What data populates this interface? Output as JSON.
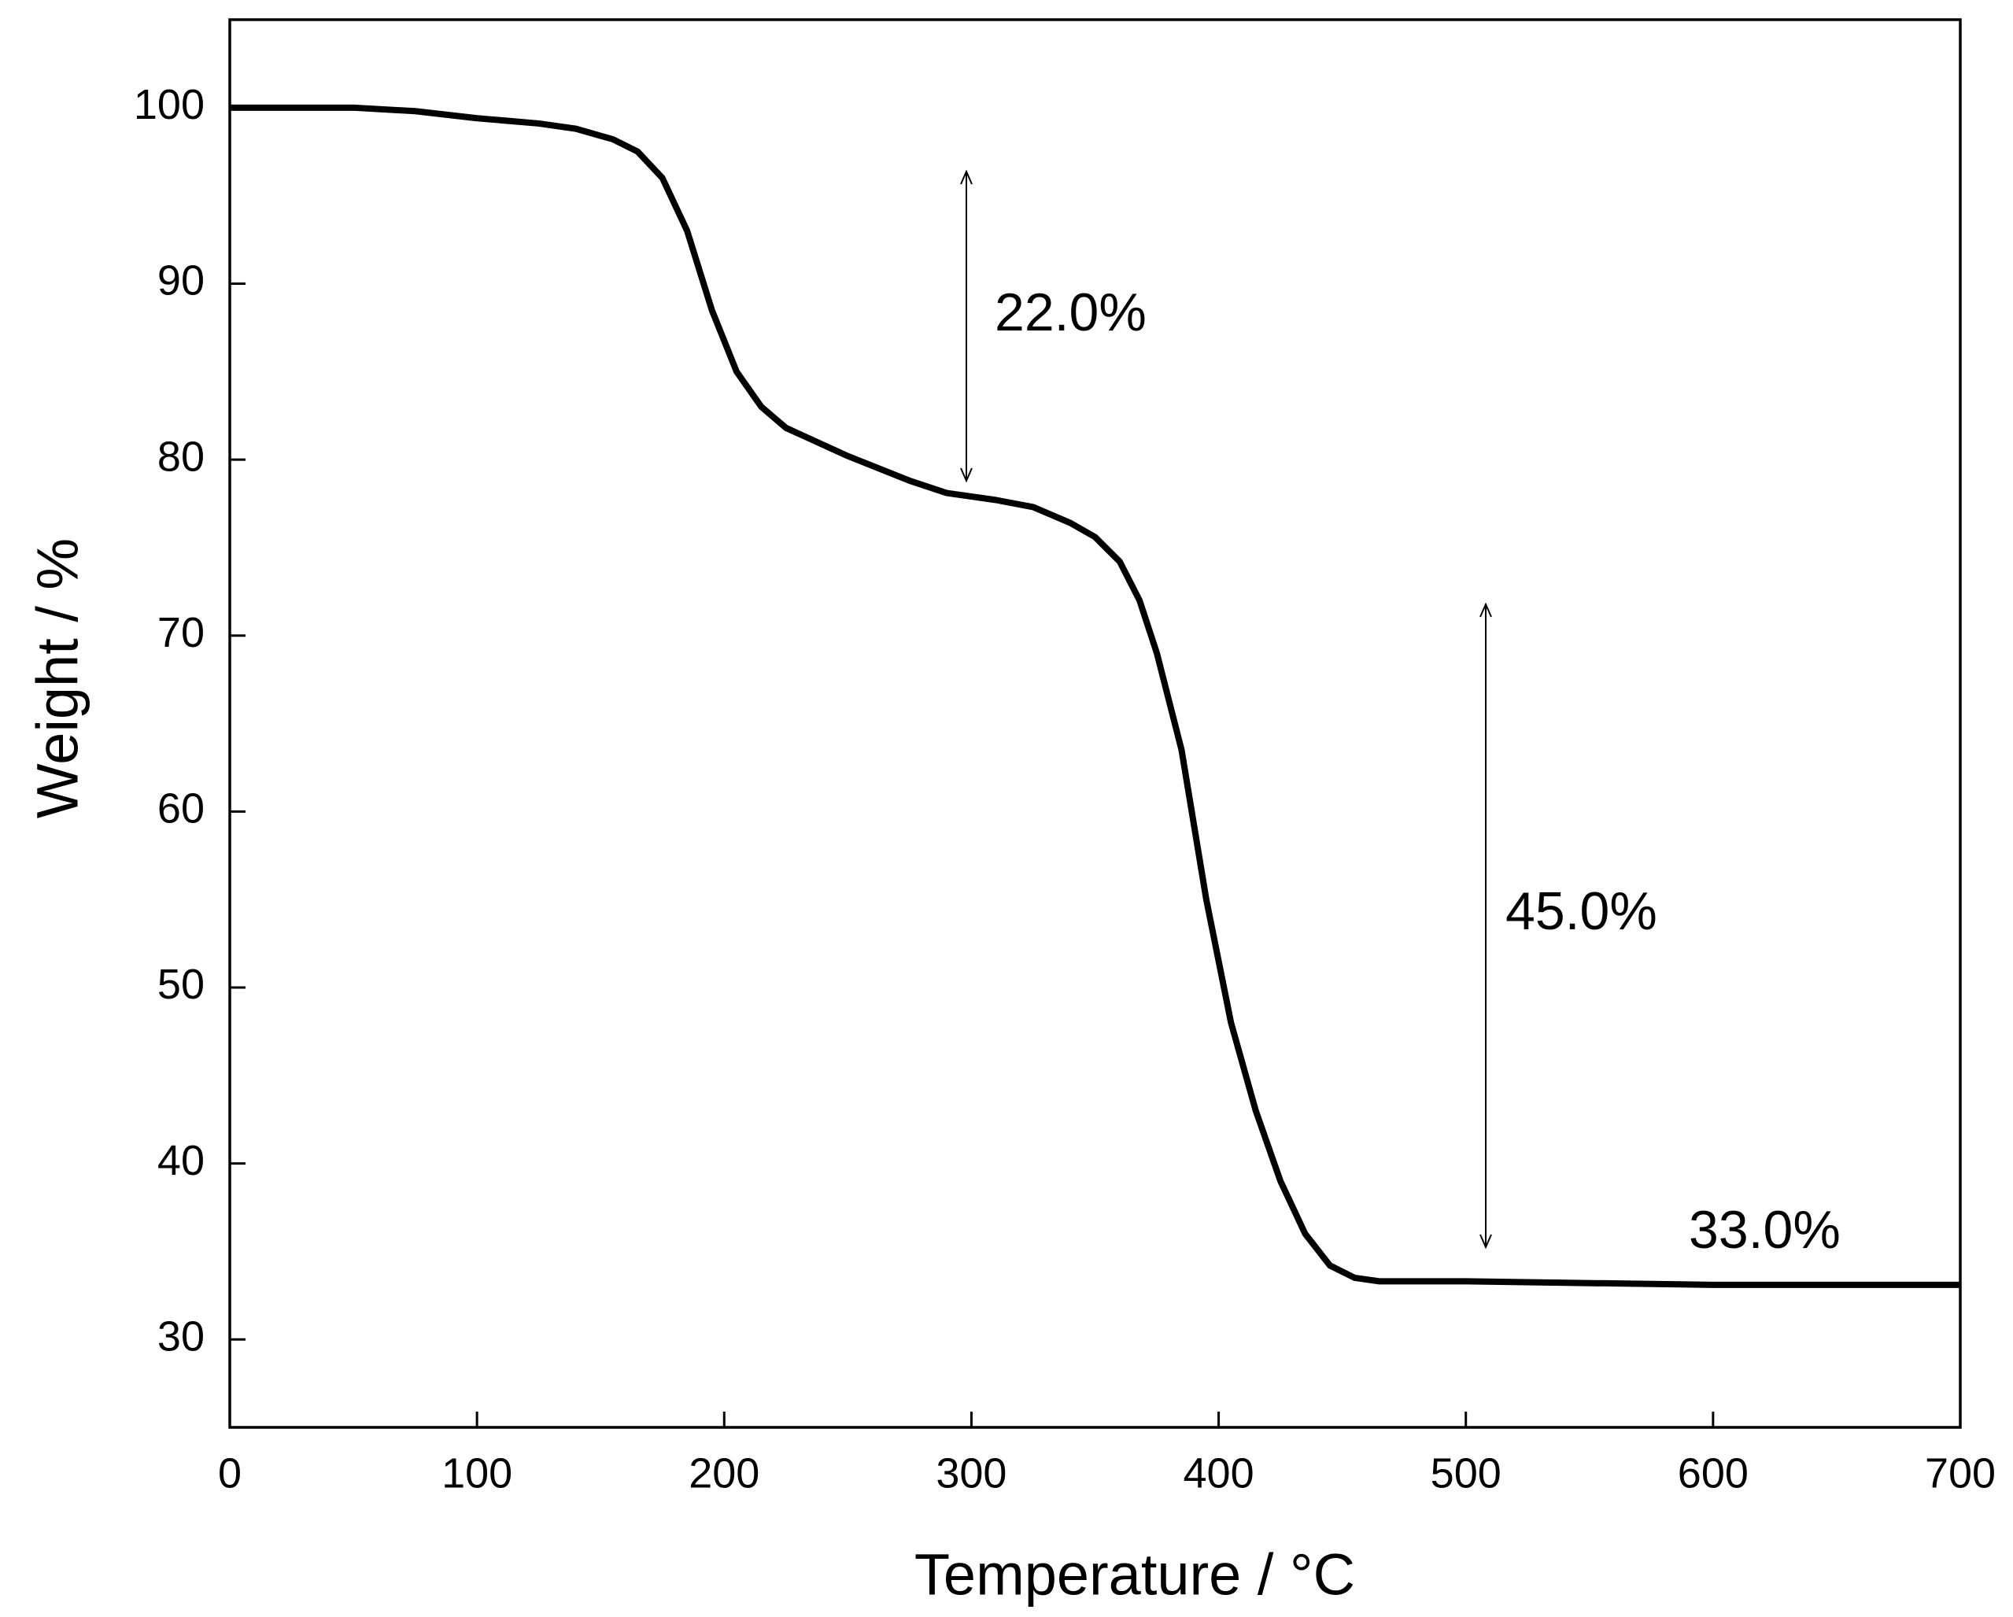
{
  "chart_data": {
    "type": "line",
    "x_label": "Temperature / °C",
    "y_label": "Weight / %",
    "x": [
      0,
      50,
      75,
      100,
      125,
      140,
      155,
      165,
      175,
      185,
      195,
      205,
      215,
      225,
      250,
      275,
      290,
      310,
      325,
      340,
      350,
      360,
      368,
      375,
      385,
      395,
      405,
      415,
      425,
      435,
      445,
      455,
      465,
      500,
      600,
      700
    ],
    "series": [
      {
        "color": "#000000",
        "values": [
          100,
          100,
          99.8,
          99.4,
          99.1,
          98.8,
          98.2,
          97.5,
          96,
          93,
          88.5,
          85,
          83,
          81.8,
          80.2,
          78.8,
          78.1,
          77.7,
          77.3,
          76.4,
          75.6,
          74.2,
          72,
          69,
          63.5,
          55,
          48,
          43,
          39,
          36,
          34.2,
          33.5,
          33.3,
          33.3,
          33.1,
          33.1
        ]
      }
    ],
    "xlim": [
      0,
      700
    ],
    "xticks": [
      0,
      100,
      200,
      300,
      400,
      500,
      600,
      700
    ],
    "ylim": [
      25,
      105
    ],
    "yticks": [
      30,
      40,
      50,
      60,
      70,
      80,
      90,
      100
    ],
    "grid": false,
    "annotations": [
      "22.0%",
      "45.0%",
      "33.0%"
    ]
  }
}
